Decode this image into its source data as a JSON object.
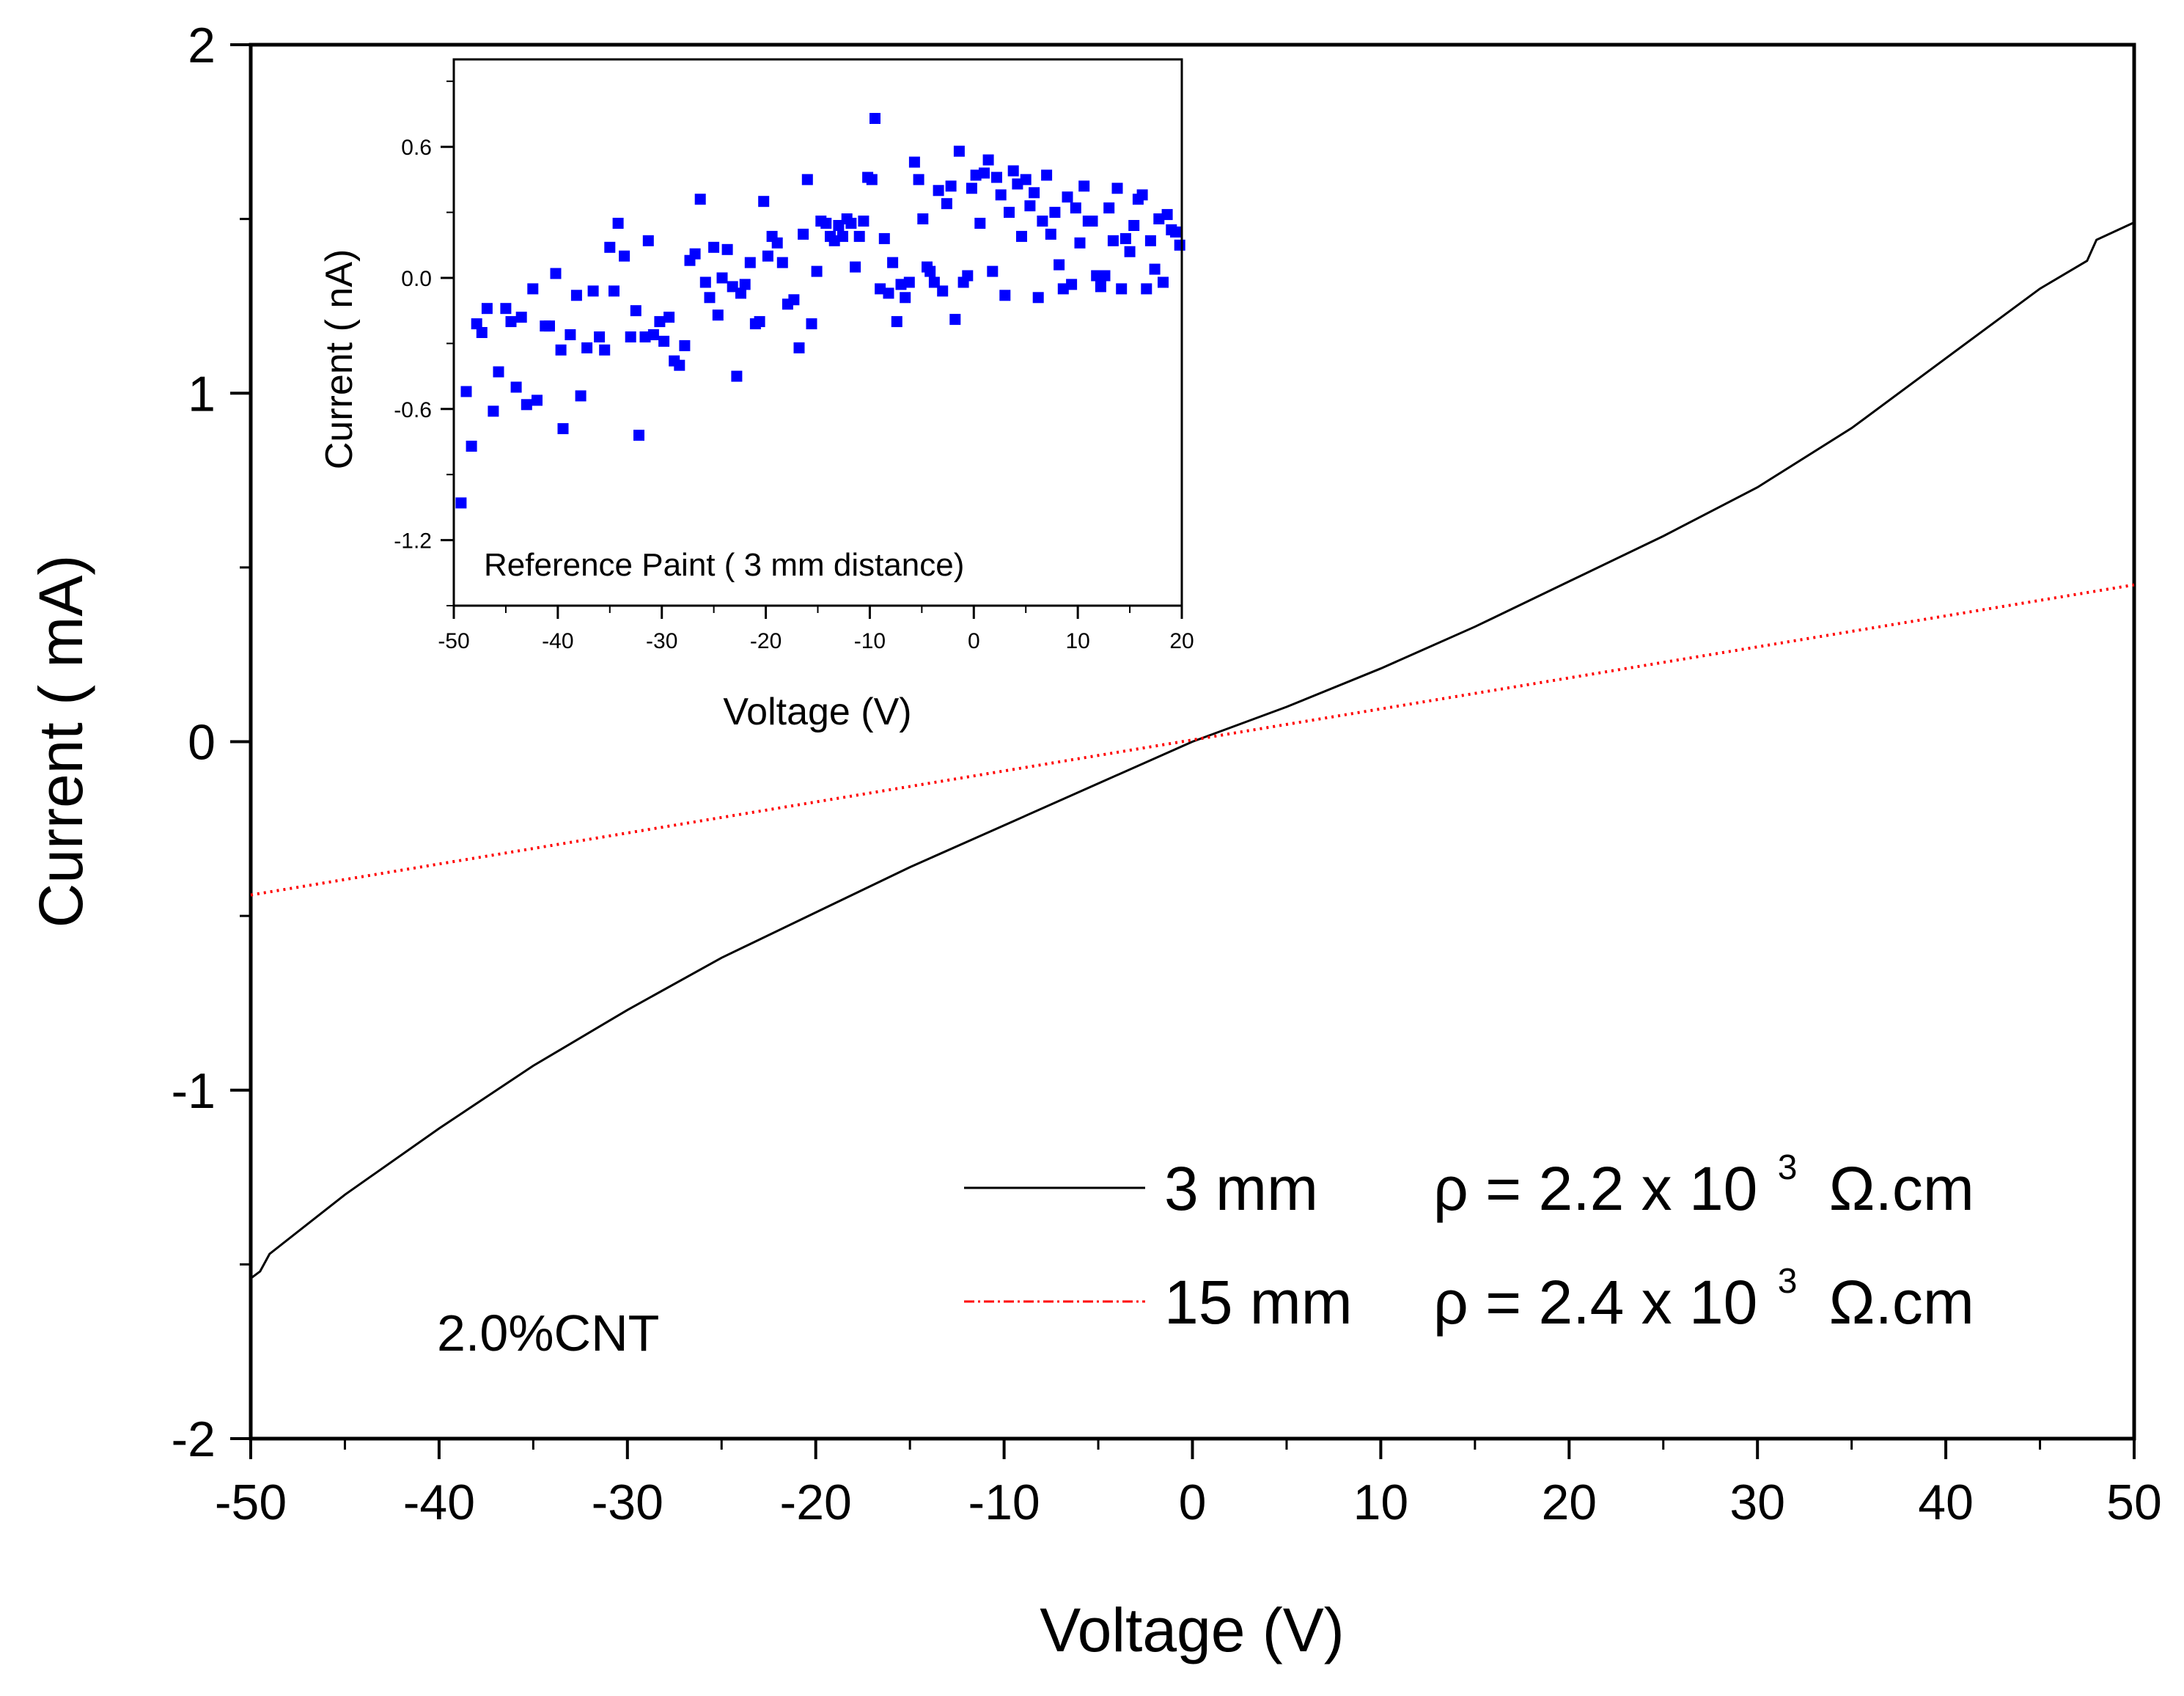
{
  "chart_data": [
    {
      "type": "line",
      "id": "main",
      "xlabel": "Voltage (V)",
      "ylabel": "Current ( mA)",
      "xlim": [
        -50,
        50
      ],
      "ylim": [
        -2,
        2
      ],
      "xticks": [
        -50,
        -40,
        -30,
        -20,
        -10,
        0,
        10,
        20,
        30,
        40,
        50
      ],
      "xtick_labels": [
        "-50",
        "-40",
        "-30",
        "-20",
        "-10",
        "0",
        "10",
        "20",
        "30",
        "40",
        "50"
      ],
      "yticks": [
        -2,
        -1,
        0,
        1,
        2
      ],
      "ytick_labels": [
        "-2",
        "-1",
        "0",
        "1",
        "2"
      ],
      "annotation": "2.0%CNT",
      "legend_position": "bottom-right",
      "series": [
        {
          "name": "3 mm",
          "label_rho": "ρ = 2.2 x 10",
          "label_exp": "3",
          "label_unit": "Ω.cm",
          "color": "#000000",
          "style": "solid",
          "x": [
            -50,
            -49.5,
            -49,
            -45,
            -40,
            -35,
            -30,
            -25,
            -20,
            -15,
            -10,
            -5,
            0,
            5,
            10,
            15,
            20,
            25,
            30,
            35,
            40,
            45,
            47.5,
            48,
            50
          ],
          "y": [
            -1.54,
            -1.52,
            -1.47,
            -1.3,
            -1.11,
            -0.93,
            -0.77,
            -0.62,
            -0.49,
            -0.36,
            -0.24,
            -0.12,
            0,
            0.1,
            0.21,
            0.33,
            0.46,
            0.59,
            0.73,
            0.9,
            1.1,
            1.3,
            1.38,
            1.44,
            1.49
          ]
        },
        {
          "name": "15 mm",
          "label_rho": "ρ = 2.4 x 10",
          "label_exp": "3",
          "label_unit": "Ω.cm",
          "color": "#ff0000",
          "style": "dotted",
          "x": [
            -50,
            50
          ],
          "y": [
            -0.44,
            0.45
          ]
        }
      ]
    },
    {
      "type": "scatter",
      "id": "inset",
      "title": "Reference Paint ( 3 mm distance)",
      "xlabel": "Voltage (V)",
      "ylabel": "Current ( nA)",
      "xlim": [
        -50,
        20
      ],
      "ylim": [
        -1.5,
        1.0
      ],
      "xticks": [
        -50,
        -40,
        -30,
        -20,
        -10,
        0,
        10,
        20
      ],
      "xtick_labels": [
        "-50",
        "-40",
        "-30",
        "-20",
        "-10",
        "0",
        "10",
        "20"
      ],
      "yticks": [
        -1.2,
        -0.6,
        0.0,
        0.6
      ],
      "ytick_labels": [
        "-1.2",
        "-0.6",
        "0.0",
        "0.6"
      ],
      "marker_color": "#0000ff",
      "marker": "square",
      "points": [
        [
          -49.3,
          -1.03
        ],
        [
          -48.8,
          -0.52
        ],
        [
          -48.3,
          -0.77
        ],
        [
          -47.8,
          -0.21
        ],
        [
          -47.3,
          -0.25
        ],
        [
          -46.8,
          -0.14
        ],
        [
          -46.2,
          -0.61
        ],
        [
          -45.7,
          -0.43
        ],
        [
          -45.0,
          -0.14
        ],
        [
          -44.5,
          -0.2
        ],
        [
          -44.0,
          -0.5
        ],
        [
          -43.5,
          -0.18
        ],
        [
          -43.0,
          -0.58
        ],
        [
          -42.4,
          -0.05
        ],
        [
          -42.0,
          -0.56
        ],
        [
          -41.2,
          -0.22
        ],
        [
          -40.8,
          -0.22
        ],
        [
          -40.2,
          0.02
        ],
        [
          -39.7,
          -0.33
        ],
        [
          -39.5,
          -0.69
        ],
        [
          -38.8,
          -0.26
        ],
        [
          -38.2,
          -0.08
        ],
        [
          -37.8,
          -0.54
        ],
        [
          -37.2,
          -0.32
        ],
        [
          -36.6,
          -0.06
        ],
        [
          -36.0,
          -0.27
        ],
        [
          -35.5,
          -0.33
        ],
        [
          -35.0,
          0.14
        ],
        [
          -34.6,
          -0.06
        ],
        [
          -34.2,
          0.25
        ],
        [
          -33.6,
          0.1
        ],
        [
          -33.0,
          -0.27
        ],
        [
          -32.5,
          -0.15
        ],
        [
          -32.2,
          -0.72
        ],
        [
          -31.6,
          -0.27
        ],
        [
          -31.3,
          0.17
        ],
        [
          -30.8,
          -0.26
        ],
        [
          -30.2,
          -0.2
        ],
        [
          -29.8,
          -0.29
        ],
        [
          -29.3,
          -0.18
        ],
        [
          -28.8,
          -0.38
        ],
        [
          -28.3,
          -0.4
        ],
        [
          -27.8,
          -0.31
        ],
        [
          -27.3,
          0.08
        ],
        [
          -26.8,
          0.11
        ],
        [
          -26.3,
          0.36
        ],
        [
          -25.8,
          -0.02
        ],
        [
          -25.4,
          -0.09
        ],
        [
          -25.0,
          0.14
        ],
        [
          -24.6,
          -0.17
        ],
        [
          -24.2,
          0.0
        ],
        [
          -23.7,
          0.13
        ],
        [
          -23.2,
          -0.04
        ],
        [
          -22.8,
          -0.45
        ],
        [
          -22.4,
          -0.07
        ],
        [
          -22.0,
          -0.03
        ],
        [
          -21.5,
          0.07
        ],
        [
          -21.0,
          -0.21
        ],
        [
          -20.6,
          -0.2
        ],
        [
          -20.2,
          0.35
        ],
        [
          -19.8,
          0.1
        ],
        [
          -19.4,
          0.19
        ],
        [
          -18.9,
          0.16
        ],
        [
          -18.4,
          0.07
        ],
        [
          -17.9,
          -0.12
        ],
        [
          -17.3,
          -0.1
        ],
        [
          -16.8,
          -0.32
        ],
        [
          -16.4,
          0.2
        ],
        [
          -16.0,
          0.45
        ],
        [
          -15.6,
          -0.21
        ],
        [
          -15.1,
          0.03
        ],
        [
          -14.7,
          0.26
        ],
        [
          -14.2,
          0.25
        ],
        [
          -13.8,
          0.19
        ],
        [
          -13.4,
          0.17
        ],
        [
          -13.0,
          0.24
        ],
        [
          -12.6,
          0.19
        ],
        [
          -12.2,
          0.27
        ],
        [
          -11.8,
          0.25
        ],
        [
          -11.4,
          0.05
        ],
        [
          -11.0,
          0.19
        ],
        [
          -10.6,
          0.26
        ],
        [
          -10.2,
          0.46
        ],
        [
          -9.8,
          0.45
        ],
        [
          -9.5,
          0.73
        ],
        [
          -9.0,
          -0.05
        ],
        [
          -8.6,
          0.18
        ],
        [
          -8.2,
          -0.07
        ],
        [
          -7.8,
          0.07
        ],
        [
          -7.4,
          -0.2
        ],
        [
          -7.0,
          -0.03
        ],
        [
          -6.6,
          -0.09
        ],
        [
          -6.2,
          -0.02
        ],
        [
          -5.7,
          0.53
        ],
        [
          -5.3,
          0.45
        ],
        [
          -4.9,
          0.27
        ],
        [
          -4.5,
          0.05
        ],
        [
          -4.2,
          0.03
        ],
        [
          -3.8,
          -0.02
        ],
        [
          -3.4,
          0.4
        ],
        [
          -3.0,
          -0.06
        ],
        [
          -2.6,
          0.34
        ],
        [
          -2.2,
          0.42
        ],
        [
          -1.8,
          -0.19
        ],
        [
          -1.4,
          0.58
        ],
        [
          -1.0,
          -0.02
        ],
        [
          -0.6,
          0.01
        ],
        [
          -0.2,
          0.41
        ],
        [
          0.2,
          0.47
        ],
        [
          0.6,
          0.25
        ],
        [
          1.0,
          0.48
        ],
        [
          1.4,
          0.54
        ],
        [
          1.8,
          0.03
        ],
        [
          2.2,
          0.46
        ],
        [
          2.6,
          0.38
        ],
        [
          3.0,
          -0.08
        ],
        [
          3.4,
          0.3
        ],
        [
          3.8,
          0.49
        ],
        [
          4.2,
          0.43
        ],
        [
          4.6,
          0.19
        ],
        [
          5.0,
          0.45
        ],
        [
          5.4,
          0.33
        ],
        [
          5.8,
          0.39
        ],
        [
          6.2,
          -0.09
        ],
        [
          6.6,
          0.26
        ],
        [
          7.0,
          0.47
        ],
        [
          7.4,
          0.2
        ],
        [
          7.8,
          0.3
        ],
        [
          8.2,
          0.06
        ],
        [
          8.6,
          -0.05
        ],
        [
          9.0,
          0.37
        ],
        [
          9.4,
          -0.03
        ],
        [
          9.8,
          0.32
        ],
        [
          10.2,
          0.16
        ],
        [
          10.6,
          0.42
        ],
        [
          11.0,
          0.26
        ],
        [
          11.4,
          0.26
        ],
        [
          11.8,
          0.01
        ],
        [
          12.2,
          -0.04
        ],
        [
          12.6,
          0.01
        ],
        [
          13.0,
          0.32
        ],
        [
          13.4,
          0.17
        ],
        [
          13.8,
          0.41
        ],
        [
          14.2,
          -0.05
        ],
        [
          14.6,
          0.18
        ],
        [
          15.0,
          0.12
        ],
        [
          15.4,
          0.24
        ],
        [
          15.8,
          0.36
        ],
        [
          16.2,
          0.38
        ],
        [
          16.6,
          -0.05
        ],
        [
          17.0,
          0.17
        ],
        [
          17.4,
          0.04
        ],
        [
          17.8,
          0.27
        ],
        [
          18.2,
          -0.02
        ],
        [
          18.6,
          0.29
        ],
        [
          19.0,
          0.22
        ],
        [
          19.4,
          0.21
        ],
        [
          19.8,
          0.15
        ]
      ]
    }
  ]
}
